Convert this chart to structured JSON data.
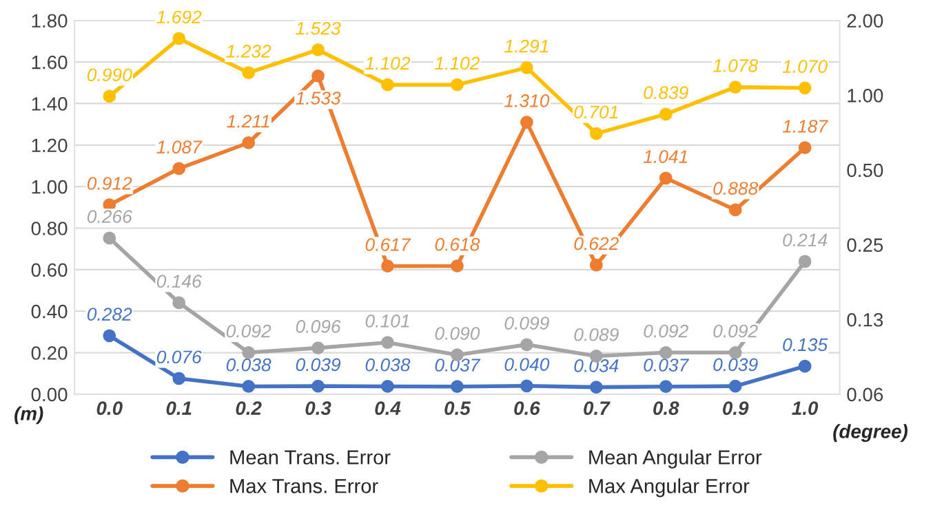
{
  "chart_data": {
    "type": "line",
    "categories": [
      "0.0",
      "0.1",
      "0.2",
      "0.3",
      "0.4",
      "0.5",
      "0.6",
      "0.7",
      "0.8",
      "0.9",
      "1.0"
    ],
    "ylabel": "(m)",
    "y2label": "(degree)",
    "ylim": [
      0,
      1.8
    ],
    "yticks": [
      {
        "value": 0,
        "label": "0.00"
      },
      {
        "value": 0.2,
        "label": "0.20"
      },
      {
        "value": 0.4,
        "label": "0.40"
      },
      {
        "value": 0.6,
        "label": "0.60"
      },
      {
        "value": 0.8,
        "label": "0.80"
      },
      {
        "value": 1.0,
        "label": "1.00"
      },
      {
        "value": 1.2,
        "label": "1.20"
      },
      {
        "value": 1.4,
        "label": "1.40"
      },
      {
        "value": 1.6,
        "label": "1.60"
      },
      {
        "value": 1.8,
        "label": "1.80"
      }
    ],
    "log": "y2",
    "y2lim": [
      0.0625,
      2
    ],
    "y2ticks": [
      {
        "value": 0.0625,
        "label": "0.06"
      },
      {
        "value": 0.125,
        "label": "0.13"
      },
      {
        "value": 0.25,
        "label": "0.25"
      },
      {
        "value": 0.5,
        "label": "0.50"
      },
      {
        "value": 1,
        "label": "1.00"
      },
      {
        "value": 2,
        "label": "2.00"
      }
    ],
    "grid": "y",
    "legend": "bottom",
    "marker": "circle",
    "series": [
      {
        "name": "Mean Trans. Error",
        "color": "#4472c4",
        "values": [
          0.282,
          0.076,
          0.038,
          0.039,
          0.038,
          0.037,
          0.04,
          0.034,
          0.037,
          0.039,
          0.135
        ],
        "value_labels": [
          "0.282",
          "0.076",
          "0.038",
          "0.039",
          "0.038",
          "0.037",
          "0.040",
          "0.034",
          "0.037",
          "0.039",
          "0.135"
        ]
      },
      {
        "name": "Max Trans. Error",
        "color": "#ed7d31",
        "values": [
          0.912,
          1.087,
          1.211,
          1.533,
          0.617,
          0.618,
          1.31,
          0.622,
          1.041,
          0.888,
          1.187
        ],
        "value_labels": [
          "0.912",
          "1.087",
          "1.211",
          "1.533",
          "0.617",
          "0.618",
          "1.310",
          "0.622",
          "1.041",
          "0.888",
          "1.187"
        ]
      },
      {
        "name": "Mean Angular Error",
        "color": "#a5a5a5",
        "axis": "y2",
        "values": [
          0.266,
          0.146,
          0.092,
          0.096,
          0.101,
          0.09,
          0.099,
          0.089,
          0.092,
          0.092,
          0.214
        ],
        "value_labels": [
          "0.266",
          "0.146",
          "0.092",
          "0.096",
          "0.101",
          "0.090",
          "0.099",
          "0.089",
          "0.092",
          "0.092",
          "0.214"
        ]
      },
      {
        "name": "Max Angular Error",
        "color": "#ffc000",
        "axis": "y2",
        "values": [
          0.99,
          1.692,
          1.232,
          1.523,
          1.102,
          1.102,
          1.291,
          0.701,
          0.839,
          1.078,
          1.07
        ],
        "value_labels": [
          "0.990",
          "1.692",
          "1.232",
          "1.523",
          "1.102",
          "1.102",
          "1.291",
          "0.701",
          "0.839",
          "1.078",
          "1.070"
        ]
      }
    ]
  }
}
